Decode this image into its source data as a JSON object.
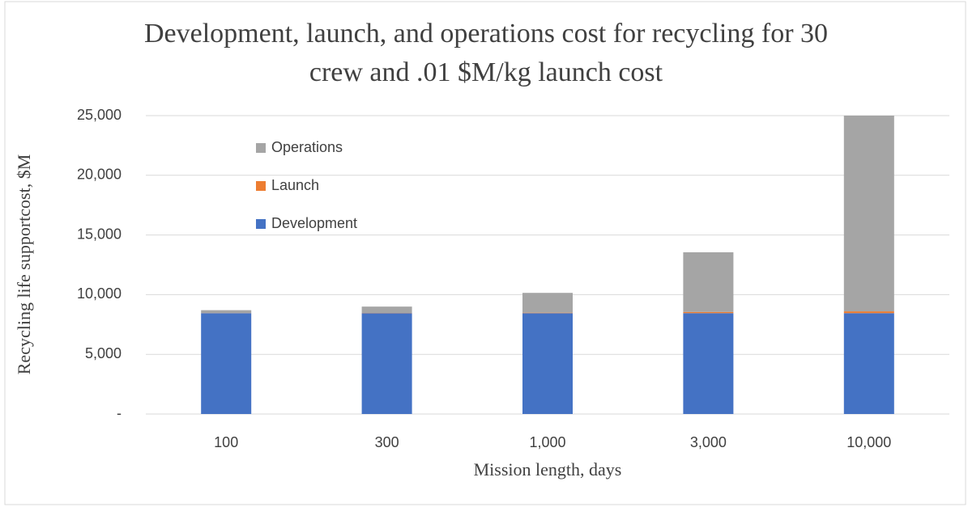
{
  "chart_data": {
    "type": "stacked_bar",
    "title": "Development, launch, and operations cost for recycling for 30 crew and .01 $M/kg launch cost",
    "x_label": "Mission length, days",
    "y_label": "Recycling life supportcost, $M",
    "categories": [
      "100",
      "300",
      "1,000",
      "3,000",
      "10,000"
    ],
    "series": [
      {
        "name": "Development",
        "color": "#4472c4",
        "values": [
          8450,
          8450,
          8450,
          8450,
          8450
        ]
      },
      {
        "name": "Launch",
        "color": "#ed7d31",
        "values": [
          10,
          20,
          40,
          100,
          150
        ]
      },
      {
        "name": "Operations",
        "color": "#a5a5a5",
        "values": [
          240,
          530,
          1660,
          5000,
          16400
        ]
      }
    ],
    "ylim": [
      0,
      25000
    ],
    "yticks": [
      {
        "value": 0,
        "label": "-"
      },
      {
        "value": 5000,
        "label": "5,000"
      },
      {
        "value": 10000,
        "label": "10,000"
      },
      {
        "value": 15000,
        "label": "15,000"
      },
      {
        "value": 20000,
        "label": "20,000"
      },
      {
        "value": 25000,
        "label": "25,000"
      }
    ],
    "grid": true,
    "legend": "upper-left"
  }
}
